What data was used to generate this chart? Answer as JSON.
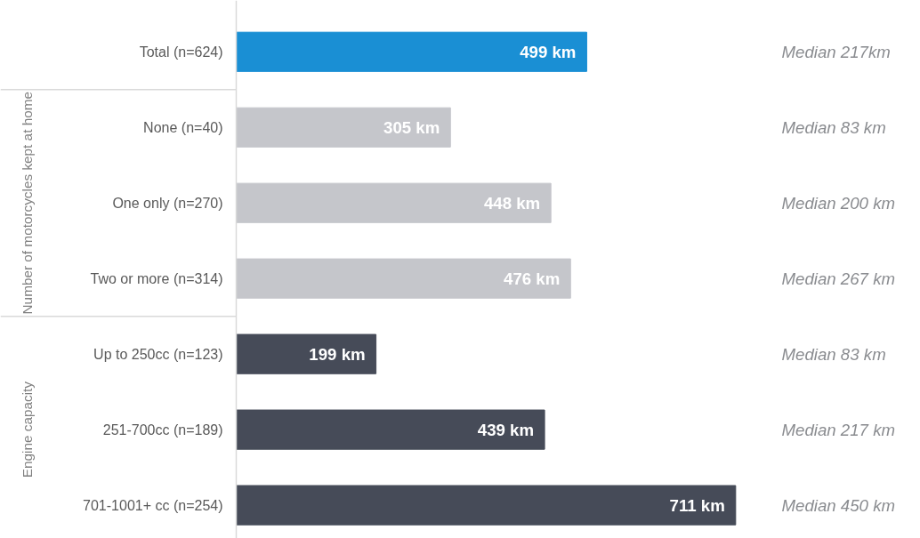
{
  "chart_data": {
    "type": "bar",
    "orientation": "horizontal",
    "categories": [
      "Total (n=624)",
      "None (n=40)",
      "One only (n=270)",
      "Two or more (n=314)",
      "Up to 250cc (n=123)",
      "251-700cc (n=189)",
      "701-1001+ cc (n=254)"
    ],
    "values": [
      499,
      305,
      448,
      476,
      199,
      439,
      711
    ],
    "colors": [
      "#1a8fd4",
      "#c5c6cb",
      "#c5c6cb",
      "#c5c6cb",
      "#464b58",
      "#464b58",
      "#464b58"
    ],
    "value_labels": [
      "499 km",
      "305 km",
      "448 km",
      "476 km",
      "199 km",
      "439 km",
      "711 km"
    ],
    "annotations": [
      "Median 217km",
      "Median 83 km",
      "Median 200 km",
      "Median 267 km",
      "Median 83 km",
      "Median 217 km",
      "Median 450 km",
      "Number of motorcycles kept at home",
      "Engine capacity"
    ],
    "grid": false
  }
}
